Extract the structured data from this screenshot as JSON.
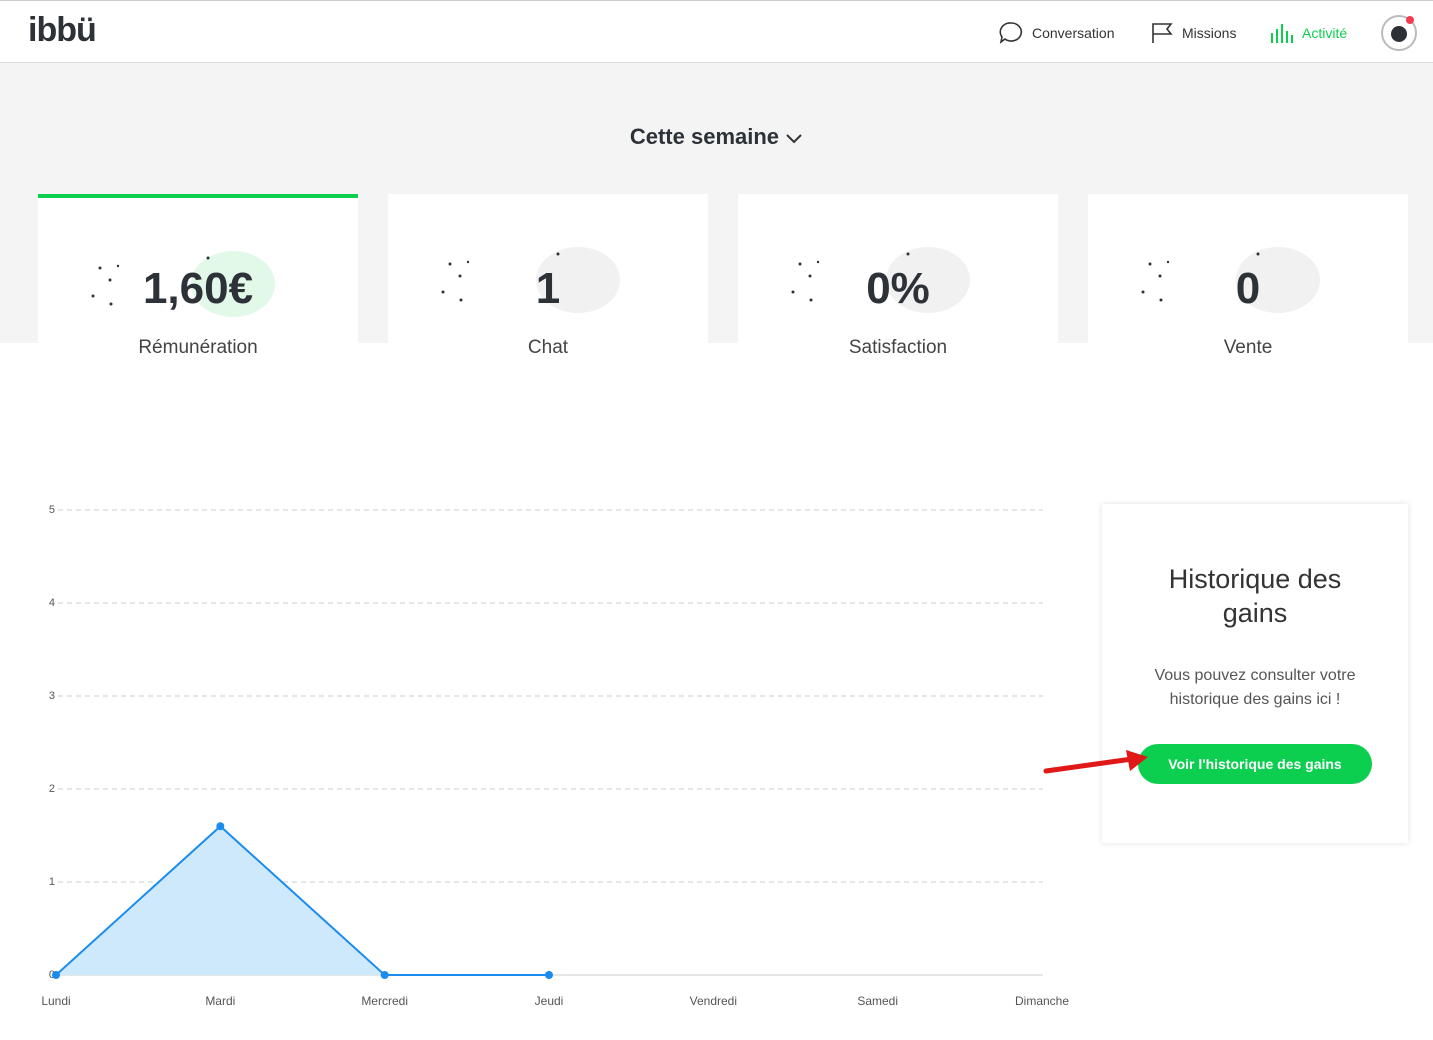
{
  "header": {
    "logo": "ibbü",
    "nav": [
      "Conversation",
      "Missions",
      "Activité"
    ]
  },
  "period": "Cette semaine",
  "stats": [
    {
      "value": "1,60€",
      "label": "Rémunération"
    },
    {
      "value": "1",
      "label": "Chat"
    },
    {
      "value": "0%",
      "label": "Satisfaction"
    },
    {
      "value": "0",
      "label": "Vente"
    }
  ],
  "chart_data": {
    "type": "line",
    "area": true,
    "categories": [
      "Lundi",
      "Mardi",
      "Mercredi",
      "Jeudi",
      "Vendredi",
      "Samedi",
      "Dimanche"
    ],
    "series": [
      {
        "color": "#1a8cf0",
        "fill": "#cde9fb",
        "values": [
          0,
          1.6,
          0,
          0,
          null,
          null,
          null
        ]
      }
    ],
    "ylim": [
      0,
      5
    ],
    "yticks": [
      0,
      1,
      2,
      3,
      4,
      5
    ],
    "grid": true
  },
  "panel": {
    "title": "Historique des gains",
    "text": "Vous pouvez consulter votre historique des gains ici !",
    "button": "Voir l'historique des gains"
  }
}
